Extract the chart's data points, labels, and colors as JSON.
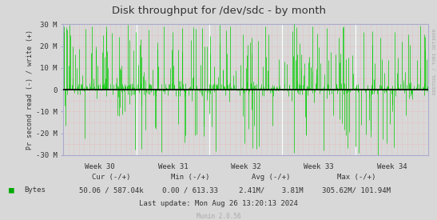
{
  "title": "Disk throughput for /dev/sdc - by month",
  "ylabel": "Pr second read (-) / write (+)",
  "xlabel_ticks": [
    "Week 30",
    "Week 31",
    "Week 32",
    "Week 33",
    "Week 34"
  ],
  "xlabel_tick_positions": [
    0.1,
    0.3,
    0.5,
    0.7,
    0.9
  ],
  "ylim": [
    -30000000,
    30000000
  ],
  "yticks": [
    -30000000,
    -20000000,
    -10000000,
    0,
    10000000,
    20000000,
    30000000
  ],
  "ytick_labels": [
    "-30 M",
    "-20 M",
    "-10 M",
    "0",
    "10 M",
    "20 M",
    "30 M"
  ],
  "bg_color": "#d8d8d8",
  "plot_bg_color": "#d8d8d8",
  "grid_dot_color": "#ff9999",
  "grid_white_color": "#ffffff",
  "line_color": "#00cc00",
  "zero_line_color": "#000000",
  "legend_square_color": "#00aa00",
  "legend_text": "Bytes",
  "footer_cur_label": "Cur (-/+)",
  "footer_min_label": "Min (-/+)",
  "footer_avg_label": "Avg (-/+)",
  "footer_max_label": "Max (-/+)",
  "footer_cur_val": "50.06 / 587.04k",
  "footer_min_val": "0.00 / 613.33",
  "footer_avg_val": "2.41M/    3.81M",
  "footer_max_val": "305.62M/ 101.94M",
  "footer_update": "Last update: Mon Aug 26 13:20:13 2024",
  "munin_version": "Munin 2.0.56",
  "rrdtool_label": "RRDTOOL / TOBI OETIKER",
  "num_points": 2000,
  "seed": 42
}
